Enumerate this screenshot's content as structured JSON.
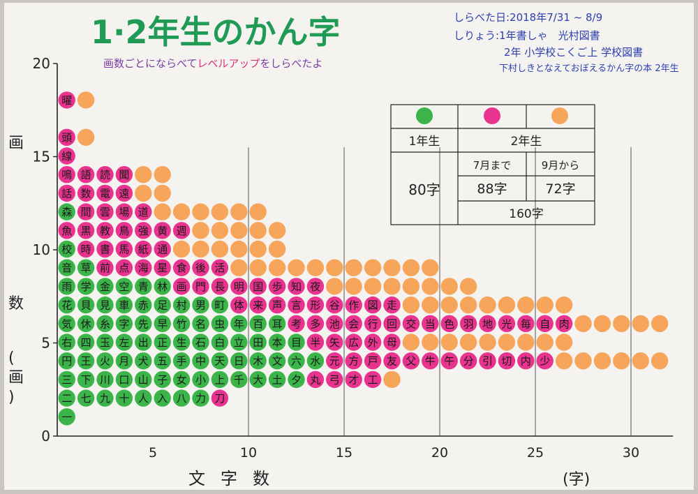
{
  "title": "1·2年生のかん字",
  "subtitle": "画数ごとにならべてレベルアップをしらべたよ",
  "subtitle_parts": [
    {
      "text": "画数ごとにならべて",
      "color": "#7a3fa0"
    },
    {
      "text": "レベルアップ",
      "color": "#e0307a"
    },
    {
      "text": "をしらべたよ",
      "color": "#7a3fa0"
    }
  ],
  "info": {
    "line1": "しらべた日:2018年7/31 ~ 8/9",
    "line2": "しりょう:1年書しゃ　光村図書",
    "line3": "2年 小学校こくご上 学校図書",
    "line4": "下村しきとなえておぼえるかん字の本 2年生"
  },
  "legend_table": {
    "colors": {
      "grade1": "#3bb54a",
      "grade2_before_july": "#e8338f",
      "grade2_from_sept": "#f6a55b"
    },
    "row_grade1": "1年生",
    "row_grade2": "2年生",
    "col_until_july": "7月まで",
    "col_from_sept": "9月から",
    "count_grade1": "80字",
    "count_until_july": "88字",
    "count_from_sept": "72字",
    "total_grade2": "160字"
  },
  "chart_data": {
    "type": "scatter",
    "title": "1·2年生のかん字",
    "xlabel": "文字数",
    "xunit": "(字)",
    "ylabel": "画数(画)",
    "xlim": [
      0,
      32
    ],
    "ylim": [
      0,
      20
    ],
    "x_ticks": [
      5,
      10,
      15,
      20,
      25,
      30
    ],
    "y_ticks": [
      0,
      5,
      10,
      15,
      20
    ],
    "grid": "vertical",
    "series": [
      {
        "name": "1年生",
        "color": "#3bb54a"
      },
      {
        "name": "7月まで",
        "color": "#e8338f"
      },
      {
        "name": "9月から",
        "color": "#f6a55b"
      }
    ],
    "rows": [
      {
        "strokes": 1,
        "green": [
          "一"
        ],
        "pink": [],
        "orange": 0
      },
      {
        "strokes": 2,
        "green": [
          "二",
          "七",
          "九",
          "十",
          "人",
          "入",
          "八",
          "力"
        ],
        "pink": [
          "刀"
        ],
        "orange": 0
      },
      {
        "strokes": 3,
        "green": [
          "三",
          "下",
          "川",
          "口",
          "山",
          "子",
          "女",
          "小",
          "上",
          "千",
          "大",
          "土",
          "夕"
        ],
        "pink": [
          "丸",
          "弓",
          "才",
          "工"
        ],
        "orange": 1
      },
      {
        "strokes": 4,
        "green": [
          "円",
          "王",
          "火",
          "月",
          "犬",
          "五",
          "手",
          "中",
          "天",
          "日",
          "木",
          "文",
          "六",
          "水"
        ],
        "pink": [
          "元",
          "方",
          "戸",
          "友",
          "父",
          "牛",
          "午",
          "分",
          "引",
          "切",
          "内",
          "少"
        ],
        "orange": 6
      },
      {
        "strokes": 5,
        "green": [
          "右",
          "四",
          "玉",
          "左",
          "出",
          "正",
          "生",
          "石",
          "白",
          "立",
          "田",
          "本",
          "目"
        ],
        "pink": [
          "半",
          "矢",
          "広",
          "外",
          "母"
        ],
        "orange": 9
      },
      {
        "strokes": 6,
        "green": [
          "気",
          "休",
          "糸",
          "字",
          "先",
          "早",
          "竹",
          "名",
          "虫",
          "年",
          "百",
          "耳"
        ],
        "pink": [
          "考",
          "多",
          "池",
          "会",
          "行",
          "回",
          "交",
          "当",
          "色",
          "羽",
          "地",
          "光",
          "毎",
          "自",
          "肉"
        ],
        "orange": 5
      },
      {
        "strokes": 7,
        "green": [
          "花",
          "貝",
          "見",
          "車",
          "赤",
          "足",
          "村",
          "男",
          "町"
        ],
        "pink": [
          "体",
          "来",
          "声",
          "言",
          "形",
          "谷",
          "作",
          "図",
          "走"
        ],
        "orange": 9
      },
      {
        "strokes": 8,
        "green": [
          "雨",
          "学",
          "金",
          "空",
          "青",
          "林"
        ],
        "pink": [
          "画",
          "門",
          "長",
          "明",
          "国",
          "歩",
          "知",
          "夜"
        ],
        "orange": 8
      },
      {
        "strokes": 9,
        "green": [
          "音",
          "草"
        ],
        "pink": [
          "前",
          "点",
          "海",
          "星",
          "食",
          "後",
          "活"
        ],
        "orange": 11
      },
      {
        "strokes": 10,
        "green": [
          "校"
        ],
        "pink": [
          "時",
          "書",
          "馬",
          "紙",
          "通"
        ],
        "orange": 6
      },
      {
        "strokes": 11,
        "green": [],
        "pink": [
          "魚",
          "黒",
          "教",
          "鳥",
          "強",
          "黄",
          "週"
        ],
        "orange": 5
      },
      {
        "strokes": 12,
        "green": [
          "森"
        ],
        "pink": [
          "間",
          "雲",
          "場",
          "道"
        ],
        "orange": 6
      },
      {
        "strokes": 13,
        "green": [],
        "pink": [
          "話",
          "数",
          "電",
          "遠"
        ],
        "orange": 2
      },
      {
        "strokes": 14,
        "green": [],
        "pink": [
          "鳴",
          "語",
          "読",
          "聞"
        ],
        "orange": 2
      },
      {
        "strokes": 15,
        "green": [],
        "pink": [
          "線"
        ],
        "orange": 0
      },
      {
        "strokes": 16,
        "green": [],
        "pink": [
          "頭"
        ],
        "orange": 1
      },
      {
        "strokes": 18,
        "green": [],
        "pink": [
          "曜"
        ],
        "orange": 1
      }
    ]
  }
}
